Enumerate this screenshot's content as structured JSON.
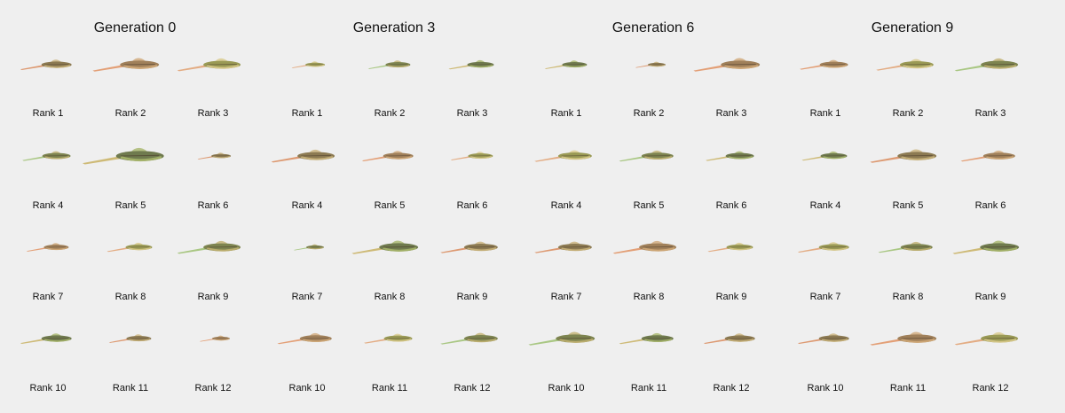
{
  "panels": [
    {
      "title": "Generation 0",
      "labels": [
        "Rank 1",
        "Rank 2",
        "Rank 3",
        "Rank 4",
        "Rank 5",
        "Rank 6",
        "Rank 7",
        "Rank 8",
        "Rank 9",
        "Rank 10",
        "Rank 11",
        "Rank 12"
      ]
    },
    {
      "title": "Generation 3",
      "labels": [
        "Rank 1",
        "Rank 2",
        "Rank 3",
        "Rank 4",
        "Rank 5",
        "Rank 6",
        "Rank 7",
        "Rank 8",
        "Rank 9",
        "Rank 10",
        "Rank 11",
        "Rank 12"
      ]
    },
    {
      "title": "Generation 6",
      "labels": [
        "Rank 1",
        "Rank 2",
        "Rank 3",
        "Rank 4",
        "Rank 5",
        "Rank 6",
        "Rank 7",
        "Rank 8",
        "Rank 9",
        "Rank 10",
        "Rank 11",
        "Rank 12"
      ]
    },
    {
      "title": "Generation 9",
      "labels": [
        "Rank 1",
        "Rank 2",
        "Rank 3",
        "Rank 4",
        "Rank 5",
        "Rank 6",
        "Rank 7",
        "Rank 8",
        "Rank 9",
        "Rank 10",
        "Rank 11",
        "Rank 12"
      ]
    }
  ]
}
